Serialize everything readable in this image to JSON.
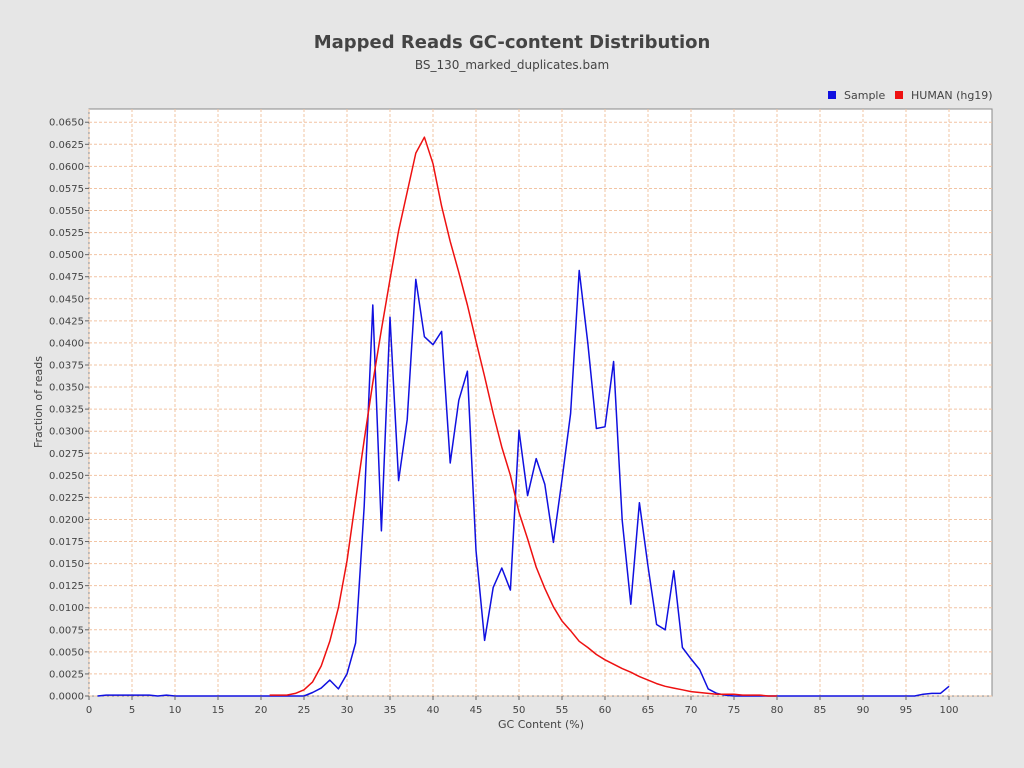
{
  "chart_data": {
    "type": "line",
    "title": "Mapped Reads GC-content Distribution",
    "subtitle": "BS_130_marked_duplicates.bam",
    "xlabel": "GC Content (%)",
    "ylabel": "Fraction of reads",
    "xlim": [
      0,
      105
    ],
    "ylim": [
      0,
      0.0665
    ],
    "xticks": [
      "0",
      "5",
      "10",
      "15",
      "20",
      "25",
      "30",
      "35",
      "40",
      "45",
      "50",
      "55",
      "60",
      "65",
      "70",
      "75",
      "80",
      "85",
      "90",
      "95",
      "100"
    ],
    "yticks": [
      "0.0000",
      "0.0025",
      "0.0050",
      "0.0075",
      "0.0100",
      "0.0125",
      "0.0150",
      "0.0175",
      "0.0200",
      "0.0225",
      "0.0250",
      "0.0275",
      "0.0300",
      "0.0325",
      "0.0350",
      "0.0375",
      "0.0400",
      "0.0425",
      "0.0450",
      "0.0475",
      "0.0500",
      "0.0525",
      "0.0550",
      "0.0575",
      "0.0600",
      "0.0625",
      "0.0650"
    ],
    "grid": true,
    "legend_position": "top-right",
    "series": [
      {
        "name": "Sample",
        "color": "#1010e0",
        "x": [
          1,
          2,
          3,
          4,
          5,
          6,
          7,
          8,
          9,
          10,
          11,
          12,
          13,
          14,
          15,
          16,
          17,
          18,
          19,
          20,
          21,
          22,
          23,
          24,
          25,
          26,
          27,
          28,
          29,
          30,
          31,
          32,
          33,
          34,
          35,
          36,
          37,
          38,
          39,
          40,
          41,
          42,
          43,
          44,
          45,
          46,
          47,
          48,
          49,
          50,
          51,
          52,
          53,
          54,
          55,
          56,
          57,
          58,
          59,
          60,
          61,
          62,
          63,
          64,
          65,
          66,
          67,
          68,
          69,
          70,
          71,
          72,
          73,
          74,
          75,
          76,
          77,
          78,
          79,
          80,
          81,
          82,
          83,
          84,
          85,
          86,
          87,
          88,
          89,
          90,
          91,
          92,
          93,
          94,
          95,
          96,
          97,
          98,
          99,
          100
        ],
        "y": [
          0,
          0.0001,
          0.0001,
          0.0001,
          0.0001,
          0.0001,
          0.0001,
          0,
          0.0001,
          0,
          0,
          0,
          0,
          0,
          0,
          0,
          0,
          0,
          0,
          0,
          0,
          0,
          0,
          0,
          0,
          0.0004,
          0.0009,
          0.0018,
          0.0008,
          0.0025,
          0.006,
          0.0215,
          0.0443,
          0.0187,
          0.0429,
          0.0244,
          0.0313,
          0.0472,
          0.0407,
          0.0398,
          0.0413,
          0.0264,
          0.0335,
          0.0368,
          0.0165,
          0.0063,
          0.0123,
          0.0145,
          0.012,
          0.0301,
          0.0227,
          0.0269,
          0.024,
          0.0174,
          0.0245,
          0.032,
          0.0482,
          0.04,
          0.0303,
          0.0305,
          0.0379,
          0.0199,
          0.0104,
          0.0219,
          0.0147,
          0.0081,
          0.0075,
          0.0142,
          0.0055,
          0.0042,
          0.003,
          0.0008,
          0.0003,
          0.0001,
          0,
          0,
          0,
          0,
          0,
          0,
          0,
          0,
          0,
          0,
          0,
          0,
          0,
          0,
          0,
          0,
          0,
          0,
          0,
          0,
          0,
          0,
          0.0002,
          0.0003,
          0.0003,
          0.0011
        ]
      },
      {
        "name": "HUMAN (hg19)",
        "color": "#ee1111",
        "x": [
          21,
          22,
          23,
          24,
          25,
          26,
          27,
          28,
          29,
          30,
          31,
          32,
          33,
          34,
          35,
          36,
          37,
          38,
          39,
          40,
          41,
          42,
          43,
          44,
          45,
          46,
          47,
          48,
          49,
          50,
          51,
          52,
          53,
          54,
          55,
          56,
          57,
          58,
          59,
          60,
          61,
          62,
          63,
          64,
          65,
          66,
          67,
          68,
          69,
          70,
          71,
          72,
          73,
          74,
          75,
          76,
          77,
          78,
          79,
          80
        ],
        "y": [
          0.0001,
          0.0001,
          0.0001,
          0.0003,
          0.0007,
          0.0016,
          0.0034,
          0.0062,
          0.01,
          0.0153,
          0.0222,
          0.029,
          0.0355,
          0.0415,
          0.0472,
          0.0527,
          0.0571,
          0.0615,
          0.0633,
          0.0603,
          0.0555,
          0.0515,
          0.048,
          0.0443,
          0.0402,
          0.0362,
          0.032,
          0.0282,
          0.025,
          0.0208,
          0.0178,
          0.0146,
          0.0122,
          0.0101,
          0.0085,
          0.0074,
          0.0062,
          0.0055,
          0.0047,
          0.0041,
          0.0036,
          0.0031,
          0.0027,
          0.0022,
          0.0018,
          0.0014,
          0.0011,
          0.0009,
          0.0007,
          0.0005,
          0.0004,
          0.0003,
          0.0002,
          0.0002,
          0.0002,
          0.0001,
          0.0001,
          0.0001,
          0,
          0
        ]
      }
    ]
  }
}
